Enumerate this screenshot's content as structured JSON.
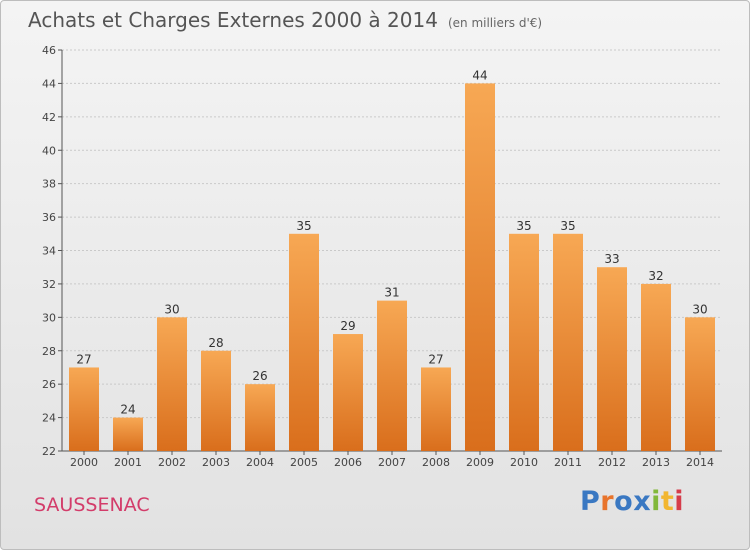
{
  "title": "Achats et Charges Externes 2000 à 2014",
  "subtitle": "(en milliers d'€)",
  "commune": "SAUSSENAC",
  "logo": {
    "text": "Proxiti",
    "colors": [
      "#3a78c2",
      "#e8742c",
      "#3a78c2",
      "#3a78c2",
      "#82b83a",
      "#f2b630",
      "#d63c4a"
    ]
  },
  "chart_data": {
    "type": "bar",
    "categories": [
      "2000",
      "2001",
      "2002",
      "2003",
      "2004",
      "2005",
      "2006",
      "2007",
      "2008",
      "2009",
      "2010",
      "2011",
      "2012",
      "2013",
      "2014"
    ],
    "values": [
      27,
      24,
      30,
      28,
      26,
      35,
      29,
      31,
      27,
      44,
      35,
      35,
      33,
      32,
      30
    ],
    "ylim": [
      22,
      46
    ],
    "yticks": [
      22,
      24,
      26,
      28,
      30,
      32,
      34,
      36,
      38,
      40,
      42,
      44,
      46
    ],
    "grid": true,
    "bar_color_top": "#f7a854",
    "bar_color_bottom": "#d96e1c"
  }
}
